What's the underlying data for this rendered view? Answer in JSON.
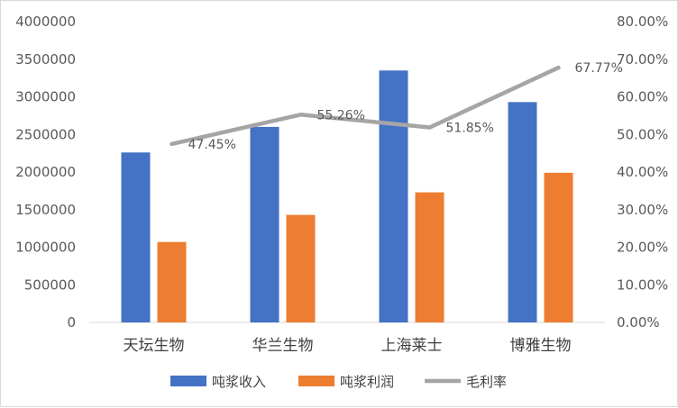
{
  "chart_data": {
    "type": "bar",
    "categories": [
      "天坛生物",
      "华兰生物",
      "上海莱士",
      "博雅生物"
    ],
    "series": [
      {
        "name": "吨浆收入",
        "kind": "bar",
        "axis": "left",
        "color": "#4472C4",
        "values": [
          2260000,
          2600000,
          3350000,
          2930000
        ]
      },
      {
        "name": "吨浆利润",
        "kind": "bar",
        "axis": "left",
        "color": "#ED7D31",
        "values": [
          1070000,
          1430000,
          1730000,
          1990000
        ]
      },
      {
        "name": "毛利率",
        "kind": "line",
        "axis": "right",
        "color": "#A5A5A5",
        "values": [
          47.45,
          55.26,
          51.85,
          67.77
        ],
        "labels": [
          "47.45%",
          "55.26%",
          "51.85%",
          "67.77%"
        ]
      }
    ],
    "y_left": {
      "min": 0,
      "max": 4000000,
      "step": 500000,
      "ticks": [
        "0",
        "500000",
        "1000000",
        "1500000",
        "2000000",
        "2500000",
        "3000000",
        "3500000",
        "4000000"
      ]
    },
    "y_right": {
      "min": 0,
      "max": 80,
      "step": 10,
      "ticks": [
        "0.00%",
        "10.00%",
        "20.00%",
        "30.00%",
        "40.00%",
        "50.00%",
        "60.00%",
        "70.00%",
        "80.00%"
      ]
    },
    "grid": false,
    "legend_position": "bottom"
  }
}
